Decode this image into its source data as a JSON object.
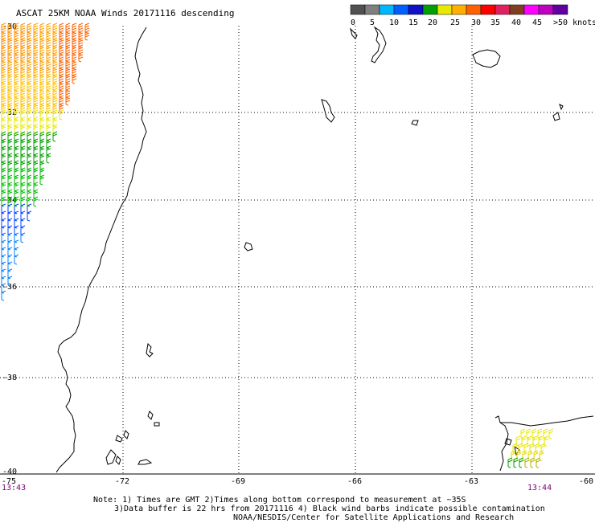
{
  "title": "ASCAT 25KM NOAA Winds 20171116 descending",
  "legend": {
    "colors": [
      "#505050",
      "#7f7f7f",
      "#00b8ff",
      "#0060ff",
      "#1010c8",
      "#00a000",
      "#e8e800",
      "#ffb000",
      "#ff6000",
      "#ff0000",
      "#e02060",
      "#804020",
      "#ff00ff",
      "#c000c0",
      "#6000a0"
    ],
    "labels": [
      "0",
      "5",
      "10",
      "15",
      "20",
      "25",
      "30",
      "35",
      "40",
      "45",
      ">50 knots"
    ]
  },
  "lat_labels": [
    "-30",
    "-32",
    "-34",
    "-36",
    "-38",
    "-40"
  ],
  "lon_labels": [
    "-75",
    "-72",
    "-69",
    "-66",
    "-63",
    "-60"
  ],
  "times": {
    "left": "13:43",
    "right": "13:44"
  },
  "notes": {
    "line1": "Note: 1) Times are GMT 2)Times along bottom correspond to measurement at ~35S",
    "line2": "3)Data buffer is 22 hrs from 20171116 4) Black wind barbs indicate possible contamination",
    "line3": "NOAA/NESDIS/Center for Satellite Applications and Research"
  }
}
